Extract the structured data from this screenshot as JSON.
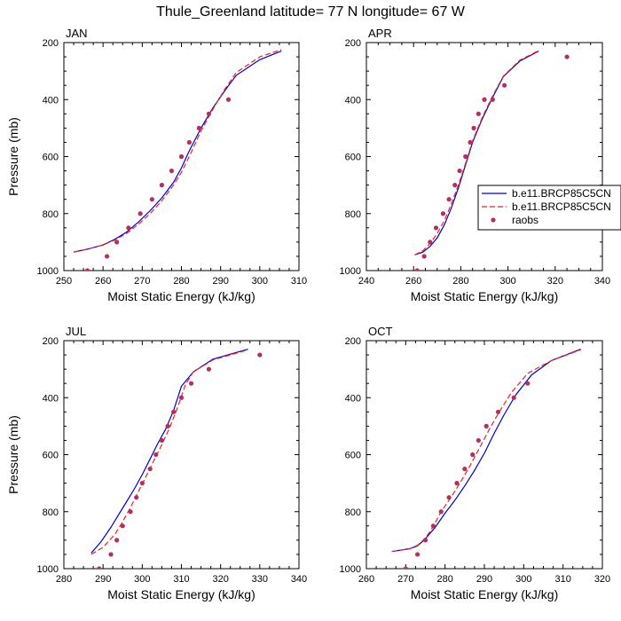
{
  "title": "Thule_Greenland  latitude= 77 N longitude= 67 W",
  "colors": {
    "series1": "#0000cc",
    "series2": "#ee2222",
    "obs": "#b03060",
    "axis": "#000000"
  },
  "legend": {
    "entries": [
      {
        "label": "b.e11.BRCP85C5CN",
        "style": "solid"
      },
      {
        "label": "b.e11.BRCP85C5CN",
        "style": "dashed"
      },
      {
        "label": "raobs",
        "style": "marker"
      }
    ]
  },
  "chart_data": [
    {
      "type": "line",
      "panel_label": "JAN",
      "xlabel": "Moist Static Energy (kJ/kg)",
      "ylabel": "Pressure (mb)",
      "xlim": [
        250,
        310
      ],
      "ylim": [
        1000,
        200
      ],
      "xticks": [
        250,
        260,
        270,
        280,
        290,
        300,
        310
      ],
      "yticks": [
        200,
        400,
        600,
        800,
        1000
      ],
      "series": [
        {
          "name": "b.e11.BRCP85C5CN",
          "style": "solid",
          "x": [
            252.5,
            256,
            260,
            263,
            266,
            269,
            272,
            275,
            278,
            280,
            282,
            285,
            288,
            291,
            294,
            300,
            305.5
          ],
          "y": [
            935,
            925,
            910,
            890,
            865,
            830,
            790,
            745,
            690,
            640,
            580,
            500,
            430,
            370,
            315,
            260,
            230
          ]
        },
        {
          "name": "b.e11.BRCP85C5CN",
          "style": "dashed",
          "x": [
            252.5,
            256,
            260,
            263,
            266,
            269,
            272,
            275,
            278,
            280,
            282,
            285,
            288,
            291,
            294,
            300,
            305.5
          ],
          "y": [
            935,
            925,
            910,
            893,
            870,
            838,
            800,
            755,
            700,
            655,
            600,
            510,
            435,
            365,
            305,
            250,
            225
          ]
        },
        {
          "name": "raobs",
          "style": "marker",
          "x": [
            256,
            261,
            263.5,
            266.5,
            269.5,
            272.5,
            275,
            277.5,
            280,
            282,
            284.5,
            287,
            292
          ],
          "y": [
            1000,
            950,
            900,
            850,
            800,
            750,
            700,
            650,
            600,
            550,
            500,
            450,
            400
          ]
        }
      ]
    },
    {
      "type": "line",
      "panel_label": "APR",
      "xlabel": "Moist Static Energy (kJ/kg)",
      "ylabel": "",
      "xlim": [
        240,
        340
      ],
      "ylim": [
        1000,
        200
      ],
      "xticks": [
        240,
        260,
        280,
        300,
        320,
        340
      ],
      "yticks": [
        200,
        400,
        600,
        800,
        1000
      ],
      "series": [
        {
          "name": "b.e11.BRCP85C5CN",
          "style": "solid",
          "x": [
            260.5,
            264,
            267,
            270,
            273,
            276,
            279,
            282,
            285,
            289,
            293,
            298,
            305,
            313
          ],
          "y": [
            945,
            935,
            915,
            885,
            840,
            780,
            710,
            630,
            550,
            470,
            400,
            320,
            265,
            230
          ]
        },
        {
          "name": "b.e11.BRCP85C5CN",
          "style": "dashed",
          "x": [
            260.5,
            264,
            267,
            270,
            273,
            276,
            279,
            282,
            285,
            289,
            293,
            298,
            305,
            313
          ],
          "y": [
            945,
            930,
            905,
            870,
            825,
            765,
            700,
            625,
            545,
            465,
            395,
            318,
            262,
            228
          ]
        },
        {
          "name": "raobs",
          "style": "marker",
          "x": [
            261.5,
            264.5,
            267,
            269.5,
            272.5,
            275,
            277.5,
            279.5,
            282,
            284,
            285.5,
            287.5,
            290,
            293.5,
            298.5,
            325
          ],
          "y": [
            1000,
            950,
            900,
            850,
            800,
            750,
            700,
            650,
            600,
            550,
            500,
            450,
            400,
            400,
            350,
            250
          ]
        }
      ]
    },
    {
      "type": "line",
      "panel_label": "JUL",
      "xlabel": "Moist Static Energy (kJ/kg)",
      "ylabel": "Pressure (mb)",
      "xlim": [
        280,
        340
      ],
      "ylim": [
        1000,
        200
      ],
      "xticks": [
        280,
        290,
        300,
        310,
        320,
        330,
        340
      ],
      "yticks": [
        200,
        400,
        600,
        800,
        1000
      ],
      "series": [
        {
          "name": "b.e11.BRCP85C5CN",
          "style": "solid",
          "x": [
            287,
            289.5,
            292,
            294,
            296,
            298,
            300,
            302,
            304,
            306,
            308,
            310,
            313,
            318,
            327
          ],
          "y": [
            945,
            905,
            855,
            810,
            765,
            720,
            670,
            615,
            560,
            510,
            445,
            360,
            310,
            265,
            230
          ]
        },
        {
          "name": "b.e11.BRCP85C5CN",
          "style": "dashed",
          "x": [
            287,
            290,
            293,
            295,
            297,
            299,
            301,
            303,
            305,
            307,
            309,
            311,
            313,
            318,
            327
          ],
          "y": [
            950,
            925,
            880,
            835,
            785,
            730,
            675,
            620,
            565,
            505,
            435,
            355,
            310,
            268,
            232
          ]
        },
        {
          "name": "raobs",
          "style": "marker",
          "x": [
            289,
            292,
            293.5,
            295,
            297,
            298.5,
            300,
            302,
            303.5,
            305,
            306.5,
            308,
            310,
            312.5,
            317,
            330
          ],
          "y": [
            1000,
            950,
            900,
            850,
            800,
            750,
            700,
            650,
            600,
            550,
            500,
            450,
            400,
            350,
            300,
            250
          ]
        }
      ]
    },
    {
      "type": "line",
      "panel_label": "OCT",
      "xlabel": "Moist Static Energy (kJ/kg)",
      "ylabel": "",
      "xlim": [
        260,
        320
      ],
      "ylim": [
        1000,
        200
      ],
      "xticks": [
        260,
        270,
        280,
        290,
        300,
        310,
        320
      ],
      "yticks": [
        200,
        400,
        600,
        800,
        1000
      ],
      "series": [
        {
          "name": "b.e11.BRCP85C5CN",
          "style": "solid",
          "x": [
            266.5,
            271,
            273,
            275,
            277.5,
            280,
            282.5,
            285,
            287.5,
            290,
            292.5,
            295,
            298,
            302,
            307,
            314.5
          ],
          "y": [
            940,
            930,
            920,
            895,
            855,
            805,
            760,
            710,
            655,
            595,
            525,
            460,
            390,
            320,
            270,
            230
          ]
        },
        {
          "name": "b.e11.BRCP85C5CN",
          "style": "dashed",
          "x": [
            266.5,
            271,
            273,
            275,
            277,
            279,
            281.5,
            284,
            286.5,
            289,
            291.5,
            294,
            297,
            301,
            307,
            314.5
          ],
          "y": [
            940,
            930,
            918,
            893,
            852,
            800,
            750,
            695,
            635,
            570,
            505,
            445,
            380,
            315,
            270,
            232
          ]
        },
        {
          "name": "raobs",
          "style": "marker",
          "x": [
            270,
            273,
            275,
            277,
            279,
            281,
            283,
            285,
            287,
            288.5,
            290.5,
            293.5,
            297.5,
            301
          ],
          "y": [
            1000,
            950,
            900,
            850,
            800,
            750,
            700,
            650,
            600,
            550,
            500,
            450,
            400,
            350
          ]
        }
      ]
    }
  ]
}
